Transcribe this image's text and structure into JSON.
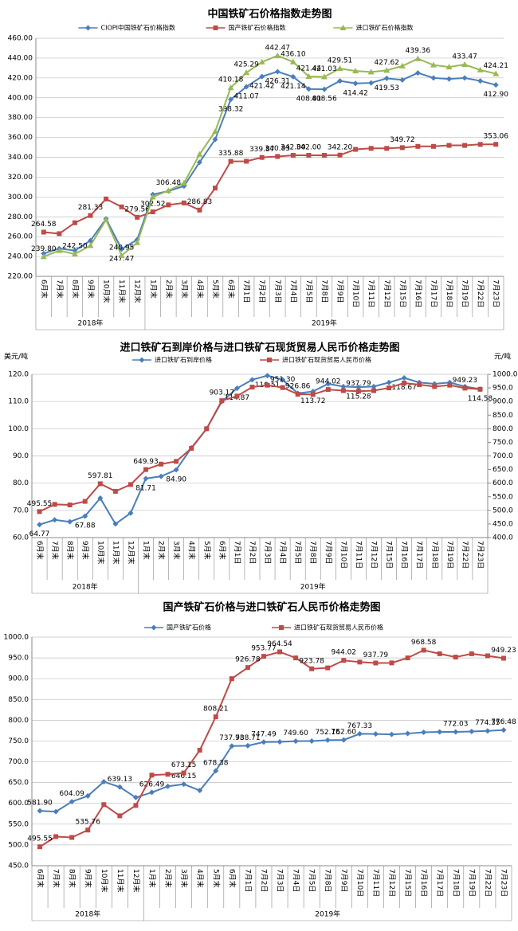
{
  "chart_data": [
    {
      "type": "line",
      "title": "中国铁矿石价格指数走势图",
      "categories": [
        "6月末",
        "7月末",
        "8月末",
        "9月末",
        "10月末",
        "11月末",
        "12月末",
        "1月末",
        "2月末",
        "3月末",
        "4月末",
        "5月末",
        "6月末",
        "7月1日",
        "7月2日",
        "7月3日",
        "7月4日",
        "7月5日",
        "7月8日",
        "7月9日",
        "7月10日",
        "7月11日",
        "7月12日",
        "7月15日",
        "7月16日",
        "7月17日",
        "7月18日",
        "7月19日",
        "7月22日",
        "7月23日"
      ],
      "groups": [
        {
          "label": "2018年",
          "count": 7
        },
        {
          "label": "2019年",
          "count": 23
        }
      ],
      "ylim": [
        220,
        460
      ],
      "yticks": [
        {
          "value": 220,
          "label": "220.00"
        },
        {
          "value": 240,
          "label": "240.00"
        },
        {
          "value": 260,
          "label": "260.00"
        },
        {
          "value": 280,
          "label": "280.00"
        },
        {
          "value": 300,
          "label": "300.00"
        },
        {
          "value": 320,
          "label": "320.00"
        },
        {
          "value": 340,
          "label": "340.00"
        },
        {
          "value": 360,
          "label": "360.00"
        },
        {
          "value": 380,
          "label": "380.00"
        },
        {
          "value": 400,
          "label": "400.00"
        },
        {
          "value": 420,
          "label": "420.00"
        },
        {
          "value": 440,
          "label": "440.00"
        },
        {
          "value": 460,
          "label": "460.00"
        }
      ],
      "grid": true,
      "series": [
        {
          "name": "CIOPI中国铁矿石价格指数",
          "color": "#4a7ebb",
          "marker": "diamond",
          "values": [
            243,
            248,
            246,
            256,
            278,
            247.47,
            257,
            302.52,
            306,
            311,
            335,
            358,
            398.32,
            411.07,
            421.42,
            426.31,
            421.14,
            408.81,
            408.56,
            417,
            414.42,
            415,
            419.53,
            418,
            425,
            420,
            419,
            420,
            417,
            412.9
          ],
          "value_labels": [
            null,
            null,
            null,
            null,
            null,
            "247.47",
            null,
            "302.52",
            null,
            null,
            null,
            null,
            "398.32",
            "411.07",
            "421.42",
            "426.31",
            "421.14",
            "408.81",
            "408.56",
            null,
            "414.42",
            null,
            "419.53",
            null,
            null,
            null,
            null,
            null,
            null,
            "412.90"
          ]
        },
        {
          "name": "国产铁矿石价格指数",
          "color": "#be4b48",
          "marker": "square",
          "values": [
            264.58,
            263,
            274,
            281.33,
            298,
            290,
            279.56,
            285,
            292,
            294,
            286.83,
            309,
            335.88,
            336,
            339.87,
            340.83,
            342,
            342,
            342,
            342.2,
            348,
            349,
            349,
            349.72,
            351,
            351,
            352,
            352,
            353,
            353.06
          ],
          "value_labels": [
            "264.58",
            null,
            null,
            "281.33",
            null,
            null,
            "279.56",
            null,
            null,
            null,
            "286.83",
            null,
            "335.88",
            null,
            "339.87",
            "340.83",
            "342.00",
            "342.00",
            null,
            "342.20",
            null,
            null,
            null,
            "349.72",
            null,
            null,
            null,
            null,
            null,
            "353.06"
          ]
        },
        {
          "name": "进口铁矿石价格指数",
          "color": "#98b954",
          "marker": "triangle",
          "values": [
            239.8,
            246,
            242.5,
            251,
            277,
            240.95,
            254,
            300,
            306.48,
            314,
            343,
            366,
            410.18,
            425.29,
            436,
            442.47,
            436.1,
            421.44,
            421.03,
            429.51,
            427,
            426,
            427.62,
            432,
            439.36,
            433,
            431,
            433.47,
            428,
            424.21
          ],
          "value_labels": [
            "239.80",
            null,
            "242.50",
            null,
            null,
            "240.95",
            null,
            null,
            "306.48",
            null,
            null,
            null,
            "410.18",
            "425.29",
            null,
            "442.47",
            "436.10",
            "421.44",
            "421.03",
            "429.51",
            null,
            null,
            "427.62",
            null,
            "439.36",
            null,
            null,
            "433.47",
            null,
            "424.21"
          ]
        }
      ]
    },
    {
      "type": "line",
      "title": "进口铁矿石到岸价格与进口铁矿石现货贸易人民币价格走势图",
      "y_label": "美元/吨",
      "y2_label": "元/吨",
      "categories": [
        "6月末",
        "7月末",
        "8月末",
        "9月末",
        "10月末",
        "11月末",
        "12月末",
        "1月末",
        "2月末",
        "3月末",
        "4月末",
        "5月末",
        "6月末",
        "7月1日",
        "7月2日",
        "7月3日",
        "7月4日",
        "7月5日",
        "7月8日",
        "7月9日",
        "7月10日",
        "7月11日",
        "7月12日",
        "7月15日",
        "7月16日",
        "7月17日",
        "7月18日",
        "7月19日",
        "7月22日",
        "7月23日"
      ],
      "groups": [
        {
          "label": "2018年",
          "count": 7
        },
        {
          "label": "2019年",
          "count": 23
        }
      ],
      "ylim": [
        60,
        120
      ],
      "yticks": [
        {
          "value": 60,
          "label": "60.0"
        },
        {
          "value": 70,
          "label": "70.0"
        },
        {
          "value": 80,
          "label": "80.0"
        },
        {
          "value": 90,
          "label": "90.0"
        },
        {
          "value": 100,
          "label": "100.0"
        },
        {
          "value": 110,
          "label": "110.0"
        },
        {
          "value": 120,
          "label": "120.0"
        }
      ],
      "y2lim": [
        400,
        1000
      ],
      "y2ticks": [
        {
          "value": 400,
          "label": "400.0"
        },
        {
          "value": 450,
          "label": "450.0"
        },
        {
          "value": 500,
          "label": "500.0"
        },
        {
          "value": 550,
          "label": "550.0"
        },
        {
          "value": 600,
          "label": "600.0"
        },
        {
          "value": 650,
          "label": "650.0"
        },
        {
          "value": 700,
          "label": "700.0"
        },
        {
          "value": 750,
          "label": "750.0"
        },
        {
          "value": 800,
          "label": "800.0"
        },
        {
          "value": 850,
          "label": "850.0"
        },
        {
          "value": 900,
          "label": "900.0"
        },
        {
          "value": 950,
          "label": "950.0"
        },
        {
          "value": 1000,
          "label": "1000.0"
        }
      ],
      "grid": true,
      "series": [
        {
          "name": "进口铁矿石到岸价格",
          "color": "#4a7ebb",
          "marker": "diamond",
          "values": [
            64.77,
            66.5,
            65.8,
            67.88,
            74.5,
            65,
            69,
            81.71,
            82.5,
            84.9,
            93,
            100,
            110,
            114.87,
            118,
            119.51,
            118,
            113,
            113.72,
            116.5,
            115.5,
            115.28,
            115.5,
            117,
            118.67,
            117,
            116.5,
            117,
            115.5,
            114.58
          ],
          "value_labels": [
            "64.77",
            null,
            null,
            "67.88",
            null,
            null,
            null,
            "81.71",
            null,
            "84.90",
            null,
            null,
            null,
            "114.87",
            null,
            "119.51",
            null,
            null,
            "113.72",
            null,
            null,
            "115.28",
            null,
            null,
            "118.67",
            null,
            null,
            null,
            null,
            "114.58"
          ]
        },
        {
          "name": "进口铁矿石现货贸易人民币价格",
          "color": "#be4b48",
          "marker": "square",
          "axis": "y2",
          "values": [
            495.55,
            522,
            520,
            533,
            597.81,
            570,
            595,
            649.93,
            670,
            680,
            728,
            800,
            903.17,
            920,
            953,
            960,
            951.3,
            926.86,
            926,
            944.02,
            940,
            937.79,
            940,
            950,
            968,
            962,
            955,
            960,
            949.23,
            945
          ],
          "value_labels": [
            "495.55",
            null,
            null,
            null,
            "597.81",
            null,
            null,
            "649.93",
            null,
            null,
            null,
            null,
            "903.17",
            null,
            null,
            null,
            "951.30",
            "926.86",
            null,
            "944.02",
            null,
            "937.79",
            null,
            null,
            null,
            null,
            null,
            null,
            "949.23",
            null
          ]
        }
      ]
    },
    {
      "type": "line",
      "title": "国产铁矿石价格与进口铁矿石人民币价格走势图",
      "categories": [
        "6月末",
        "7月末",
        "8月末",
        "9月末",
        "10月末",
        "11月末",
        "12月末",
        "1月末",
        "2月末",
        "3月末",
        "4月末",
        "5月末",
        "6月末",
        "7月1日",
        "7月2日",
        "7月3日",
        "7月4日",
        "7月5日",
        "7月8日",
        "7月9日",
        "7月10日",
        "7月11日",
        "7月12日",
        "7月15日",
        "7月16日",
        "7月17日",
        "7月18日",
        "7月19日",
        "7月22日",
        "7月23日"
      ],
      "groups": [
        {
          "label": "2018年",
          "count": 7
        },
        {
          "label": "2019年",
          "count": 23
        }
      ],
      "ylim": [
        450,
        1000
      ],
      "yticks": [
        {
          "value": 450,
          "label": "450.0"
        },
        {
          "value": 500,
          "label": "500.0"
        },
        {
          "value": 550,
          "label": "550.0"
        },
        {
          "value": 600,
          "label": "600.0"
        },
        {
          "value": 650,
          "label": "650.0"
        },
        {
          "value": 700,
          "label": "700.0"
        },
        {
          "value": 750,
          "label": "750.0"
        },
        {
          "value": 800,
          "label": "800.0"
        },
        {
          "value": 850,
          "label": "850.0"
        },
        {
          "value": 900,
          "label": "900.0"
        },
        {
          "value": 950,
          "label": "950.0"
        },
        {
          "value": 1000,
          "label": "1000.0"
        }
      ],
      "grid": true,
      "series": [
        {
          "name": "国产铁矿石价格",
          "color": "#4a7ebb",
          "marker": "diamond",
          "values": [
            581.9,
            580,
            604.09,
            618,
            652,
            639.13,
            614,
            626.49,
            641,
            646.15,
            631,
            678.38,
            737.98,
            738.71,
            747.49,
            748,
            749.6,
            750,
            752.16,
            752.6,
            767.33,
            767,
            766,
            768,
            771,
            772,
            772.03,
            773,
            774.35,
            776.48
          ],
          "value_labels": [
            "581.90",
            null,
            "604.09",
            null,
            null,
            "639.13",
            null,
            "626.49",
            null,
            "646.15",
            null,
            "678.38",
            "737.98",
            "738.71",
            "747.49",
            null,
            "749.60",
            null,
            "752.16",
            "752.60",
            "767.33",
            null,
            null,
            null,
            null,
            null,
            "772.03",
            null,
            "774.35",
            "776.48"
          ]
        },
        {
          "name": "进口铁矿石现货贸易人民币价格",
          "color": "#be4b48",
          "marker": "square",
          "values": [
            495.55,
            520,
            518,
            535.76,
            597,
            570,
            595,
            668,
            670,
            673.15,
            728,
            808.21,
            900,
            926.78,
            953.77,
            964.54,
            950,
            923.78,
            926,
            944.02,
            940,
            937.79,
            938,
            950,
            968.58,
            960,
            952,
            960,
            955,
            949.23
          ],
          "value_labels": [
            "495.55",
            null,
            null,
            "535.76",
            null,
            null,
            null,
            null,
            null,
            "673.15",
            null,
            "808.21",
            null,
            "926.78",
            "953.77",
            "964.54",
            null,
            "923.78",
            null,
            "944.02",
            null,
            "937.79",
            null,
            null,
            "968.58",
            null,
            null,
            null,
            null,
            "949.23"
          ]
        }
      ]
    }
  ]
}
